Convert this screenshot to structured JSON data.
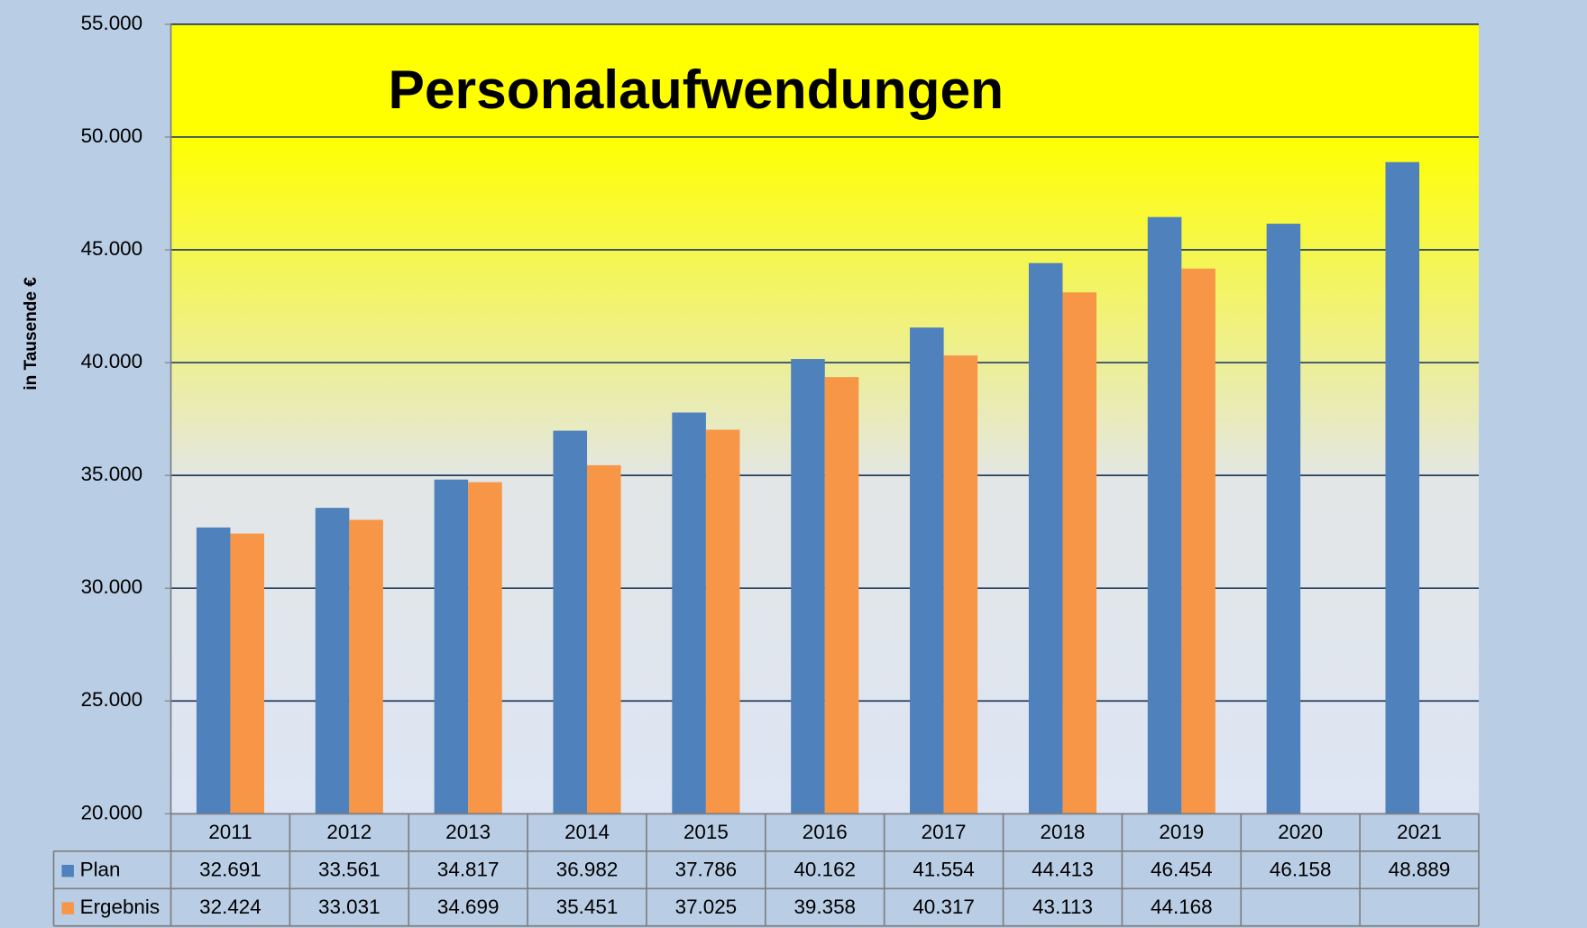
{
  "chart_data": {
    "type": "bar",
    "title": "Personalaufwendungen",
    "y_label": "in Tausende €",
    "categories": [
      "2011",
      "2012",
      "2013",
      "2014",
      "2015",
      "2016",
      "2017",
      "2018",
      "2019",
      "2020",
      "2021"
    ],
    "series": [
      {
        "name": "Plan",
        "color": "#4f81bd",
        "values": [
          32691,
          33561,
          34817,
          36982,
          37786,
          40162,
          41554,
          44413,
          46454,
          46158,
          48889
        ],
        "value_labels": [
          "32.691",
          "33.561",
          "34.817",
          "36.982",
          "37.786",
          "40.162",
          "41.554",
          "44.413",
          "46.454",
          "46.158",
          "48.889"
        ]
      },
      {
        "name": "Ergebnis",
        "color": "#f79646",
        "values": [
          32424,
          33031,
          34699,
          35451,
          37025,
          39358,
          40317,
          43113,
          44168,
          null,
          null
        ],
        "value_labels": [
          "32.424",
          "33.031",
          "34.699",
          "35.451",
          "37.025",
          "39.358",
          "40.317",
          "43.113",
          "44.168",
          null,
          null
        ]
      }
    ],
    "ylim": [
      20000,
      55000
    ],
    "yticks": [
      {
        "value": 20000,
        "label": "20.000"
      },
      {
        "value": 25000,
        "label": "25.000"
      },
      {
        "value": 30000,
        "label": "30.000"
      },
      {
        "value": 35000,
        "label": "35.000"
      },
      {
        "value": 40000,
        "label": "40.000"
      },
      {
        "value": 45000,
        "label": "45.000"
      },
      {
        "value": 50000,
        "label": "50.000"
      },
      {
        "value": 55000,
        "label": "55.000"
      }
    ],
    "grid": true,
    "data_table": true
  }
}
